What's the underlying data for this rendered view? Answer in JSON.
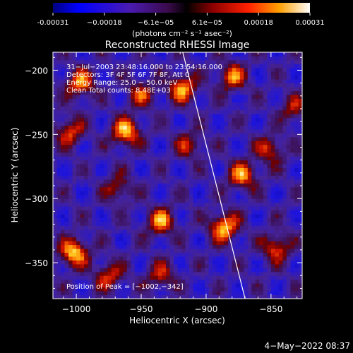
{
  "chart_data": {
    "type": "heatmap",
    "title": "Reconstructed RHESSI Image",
    "xlabel": "Heliocentric X (arcsec)",
    "ylabel": "Heliocentric Y (arcsec)",
    "xlim": [
      -1018,
      -826
    ],
    "ylim": [
      -378,
      -186
    ],
    "x_ticks": [
      {
        "value": -1000,
        "label": "−1000"
      },
      {
        "value": -950,
        "label": "−950"
      },
      {
        "value": -900,
        "label": "−900"
      },
      {
        "value": -850,
        "label": "−850"
      }
    ],
    "y_ticks": [
      {
        "value": -200,
        "label": "−200"
      },
      {
        "value": -250,
        "label": "−250"
      },
      {
        "value": -300,
        "label": "−300"
      },
      {
        "value": -350,
        "label": "−350"
      }
    ],
    "colorbar": {
      "min": -0.00031,
      "max": 0.00031,
      "tick_labels": [
        "-0.00031",
        "−0.00018",
        "−6.1e−05",
        "6.1e−05",
        "0.00018",
        "0.00031"
      ],
      "units_text": "(photons cm⁻² s⁻¹ asec⁻²)"
    },
    "annotations": [
      "31−Jul−2003 23:48:16.000 to 23:54:16.000",
      "Detectors: 3F 4F 5F 6F 7F 8F, Att 0",
      "Energy Range: 25.0 − 50.0 keV",
      "Clean    Total counts: 8.48E+03"
    ],
    "peak": {
      "x": -1002,
      "y": -342,
      "label": "Position of Peak = [−1002,−342]"
    },
    "limb_line": {
      "points": [
        [
          -918,
          -186
        ],
        [
          -870,
          -378
        ]
      ]
    },
    "hotspots": [
      {
        "x": -997,
        "y": -210,
        "v": 0.8
      },
      {
        "x": -1005,
        "y": -248,
        "v": 0.65
      },
      {
        "x": -1002,
        "y": -342,
        "v": 1.0
      },
      {
        "x": -962,
        "y": -248,
        "v": 0.95
      },
      {
        "x": -950,
        "y": -218,
        "v": 0.55
      },
      {
        "x": -918,
        "y": -214,
        "v": 0.85
      },
      {
        "x": -913,
        "y": -258,
        "v": 0.5
      },
      {
        "x": -935,
        "y": -318,
        "v": 0.8
      },
      {
        "x": -880,
        "y": -205,
        "v": 0.75
      },
      {
        "x": -872,
        "y": -282,
        "v": 0.8
      },
      {
        "x": -851,
        "y": -262,
        "v": 0.6
      },
      {
        "x": -886,
        "y": -322,
        "v": 0.95
      },
      {
        "x": -846,
        "y": -338,
        "v": 0.7
      },
      {
        "x": -935,
        "y": -360,
        "v": 0.55
      },
      {
        "x": -968,
        "y": -292,
        "v": 0.5
      },
      {
        "x": -975,
        "y": -360,
        "v": 0.6
      },
      {
        "x": -832,
        "y": -230,
        "v": 0.5
      }
    ]
  },
  "footer": {
    "timestamp": "4−May−2022 08:37"
  }
}
